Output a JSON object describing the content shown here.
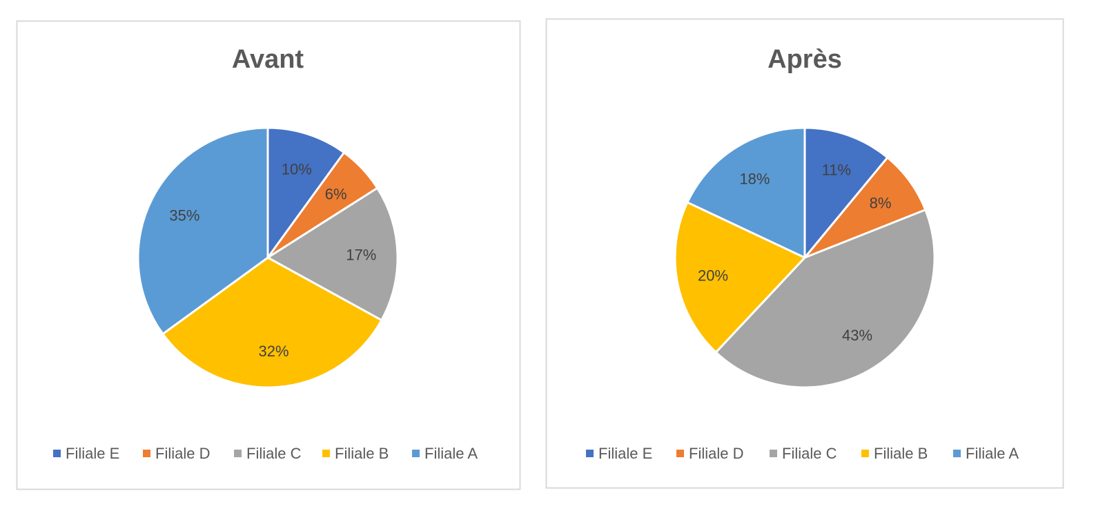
{
  "chart_data": [
    {
      "type": "pie",
      "title": "Avant",
      "categories": [
        "Filiale E",
        "Filiale D",
        "Filiale C",
        "Filiale B",
        "Filiale A"
      ],
      "values": [
        10,
        6,
        17,
        32,
        35
      ],
      "labels": [
        "10%",
        "6%",
        "17%",
        "32%",
        "35%"
      ],
      "legend_position": "bottom"
    },
    {
      "type": "pie",
      "title": "Après",
      "categories": [
        "Filiale E",
        "Filiale D",
        "Filiale C",
        "Filiale B",
        "Filiale A"
      ],
      "values": [
        11,
        8,
        43,
        20,
        18
      ],
      "labels": [
        "11%",
        "8%",
        "43%",
        "20%",
        "18%"
      ],
      "legend_position": "bottom"
    }
  ],
  "colors": [
    "#4472C4",
    "#ED7D31",
    "#A5A5A5",
    "#FFC000",
    "#5B9BD5"
  ]
}
